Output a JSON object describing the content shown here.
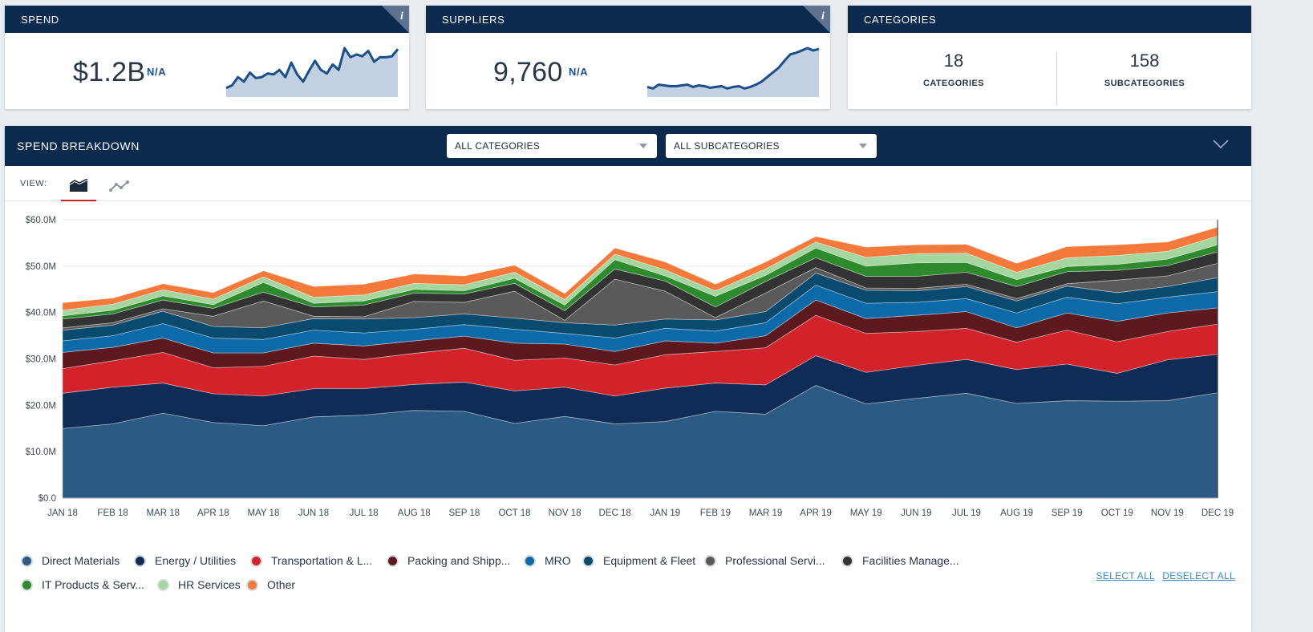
{
  "spend_card": {
    "title": "SPEND",
    "value": "$1.2B",
    "change": "N/A",
    "sparkline": [
      10,
      13,
      22,
      17,
      27,
      21,
      22,
      26,
      25,
      30,
      22,
      38,
      25,
      17,
      29,
      40,
      30,
      26,
      36,
      30,
      54,
      44,
      47,
      45,
      51,
      39,
      44,
      44,
      45,
      53
    ]
  },
  "suppliers_card": {
    "title": "SUPPLIERS",
    "value": "9,760",
    "change": "N/A",
    "sparkline": [
      13,
      11,
      16,
      15,
      14,
      14,
      15,
      16,
      13,
      15,
      14,
      12,
      13,
      14,
      11,
      13,
      14,
      11,
      13,
      16,
      20,
      26,
      32,
      38,
      47,
      55,
      57,
      60,
      63,
      60,
      62
    ]
  },
  "categories_card": {
    "title": "CATEGORIES",
    "categories_count": "18",
    "categories_label": "CATEGORIES",
    "subcategories_count": "158",
    "subcategories_label": "SUBCATEGORIES"
  },
  "breakdown": {
    "title": "SPEND BREAKDOWN",
    "category_select": "ALL CATEGORIES",
    "subcategory_select": "ALL SUBCATEGORIES",
    "view_label": "VIEW:",
    "select_all": "SELECT ALL",
    "deselect_all": "DESELECT ALL"
  },
  "colors": {
    "header_bg": "#0b2a4e",
    "spark_line": "#1c4e8a",
    "spark_fill": "#c2d1e2",
    "active_tab": "#d3232a"
  },
  "chart_data": {
    "type": "area",
    "stacked": true,
    "x": [
      "JAN 18",
      "FEB 18",
      "MAR 18",
      "APR 18",
      "MAY 18",
      "JUN 18",
      "JUL 18",
      "AUG 18",
      "SEP 18",
      "OCT 18",
      "NOV 18",
      "DEC 18",
      "JAN 19",
      "FEB 19",
      "MAR 19",
      "APR 19",
      "MAY 19",
      "JUN 19",
      "JUL 19",
      "AUG 19",
      "SEP 19",
      "OCT 19",
      "NOV 19",
      "DEC 19"
    ],
    "ylim": [
      0,
      60
    ],
    "yticks": [
      "$0.0",
      "$10.0M",
      "$20.0M",
      "$30.0M",
      "$40.0M",
      "$50.0M",
      "$60.0M"
    ],
    "grid": true,
    "legend_position": "bottom",
    "series": [
      {
        "name": "Direct Materials",
        "color": "#2b5a84",
        "values": [
          15.0,
          16.0,
          18.3,
          16.3,
          15.6,
          17.5,
          17.9,
          18.9,
          18.7,
          16.1,
          17.6,
          16.0,
          16.5,
          18.7,
          18.1,
          24.3,
          20.3,
          21.5,
          22.6,
          20.4,
          21.0,
          20.9,
          21.0,
          22.7
        ]
      },
      {
        "name": "Energy / Utilities",
        "color": "#0e2c55",
        "values": [
          7.6,
          7.9,
          6.5,
          6.2,
          6.4,
          6.1,
          5.7,
          5.6,
          6.3,
          7.0,
          6.3,
          6.0,
          7.2,
          6.1,
          6.3,
          6.4,
          6.8,
          7.1,
          7.3,
          7.3,
          7.9,
          6.0,
          8.8,
          8.3
        ]
      },
      {
        "name": "Transportation & L...",
        "color": "#d3232a",
        "values": [
          5.3,
          5.7,
          6.6,
          5.6,
          6.4,
          7.0,
          6.3,
          6.7,
          7.3,
          6.6,
          6.3,
          6.7,
          7.2,
          6.8,
          8.0,
          8.7,
          8.4,
          7.3,
          6.7,
          5.9,
          7.3,
          6.8,
          6.1,
          6.5
        ]
      },
      {
        "name": "Packing and Shipp...",
        "color": "#5c1a1e",
        "values": [
          3.5,
          2.9,
          3.1,
          3.2,
          2.9,
          2.8,
          2.9,
          2.7,
          2.6,
          3.7,
          3.0,
          2.9,
          3.0,
          1.8,
          2.6,
          3.3,
          3.2,
          3.5,
          3.6,
          3.1,
          3.7,
          4.4,
          4.0,
          3.5
        ]
      },
      {
        "name": "MRO",
        "color": "#0b6aa7",
        "values": [
          2.5,
          2.5,
          3.1,
          3.2,
          2.9,
          2.8,
          2.8,
          2.5,
          2.5,
          3.0,
          2.3,
          2.9,
          2.7,
          2.6,
          2.8,
          3.2,
          3.3,
          2.8,
          2.8,
          3.2,
          3.4,
          3.8,
          3.4,
          3.5
        ]
      },
      {
        "name": "Equipment & Fleet",
        "color": "#0a4a6e",
        "values": [
          2.3,
          2.3,
          2.7,
          2.5,
          2.5,
          2.5,
          3.0,
          2.5,
          2.3,
          2.4,
          2.3,
          2.8,
          2.0,
          2.4,
          2.4,
          2.6,
          2.8,
          2.5,
          2.6,
          2.6,
          2.4,
          2.4,
          2.3,
          3.0
        ]
      },
      {
        "name": "Professional Servi...",
        "color": "#5a5a5a",
        "values": [
          0.5,
          0.5,
          0.5,
          2.2,
          5.8,
          0.5,
          0.5,
          3.5,
          2.5,
          5.8,
          0.5,
          9.9,
          6.0,
          0.5,
          4.0,
          1.2,
          0.5,
          0.5,
          0.5,
          0.5,
          0.5,
          2.7,
          2.3,
          3.1
        ]
      },
      {
        "name": "Facilities Manage...",
        "color": "#333333",
        "values": [
          1.9,
          1.9,
          1.9,
          1.7,
          1.9,
          2.0,
          2.5,
          1.8,
          1.8,
          1.7,
          2.1,
          2.2,
          2.2,
          2.3,
          2.5,
          2.1,
          2.5,
          2.6,
          2.6,
          2.6,
          2.6,
          2.1,
          2.2,
          2.5
        ]
      },
      {
        "name": "IT Products & Serv...",
        "color": "#2d8a2d",
        "values": [
          0.7,
          0.8,
          0.9,
          0.8,
          2.1,
          0.8,
          0.9,
          0.8,
          0.7,
          1.1,
          1.2,
          2.0,
          1.1,
          2.3,
          1.3,
          2.1,
          2.2,
          2.9,
          2.1,
          1.5,
          1.1,
          1.3,
          1.4,
          1.5
        ]
      },
      {
        "name": "HR Services",
        "color": "#a5d6a0",
        "values": [
          1.2,
          1.3,
          1.3,
          1.2,
          1.2,
          1.3,
          1.3,
          1.3,
          1.3,
          1.3,
          1.2,
          1.2,
          1.3,
          1.2,
          1.4,
          1.3,
          1.9,
          2.0,
          2.0,
          1.6,
          1.9,
          1.9,
          1.7,
          1.9
        ]
      },
      {
        "name": "Other",
        "color": "#f4793a",
        "values": [
          1.6,
          1.3,
          1.3,
          1.4,
          1.3,
          2.3,
          2.3,
          2.0,
          1.9,
          1.5,
          1.3,
          1.3,
          1.7,
          1.4,
          1.5,
          1.2,
          2.2,
          1.9,
          1.9,
          1.9,
          2.4,
          2.3,
          2.0,
          1.9
        ]
      }
    ]
  }
}
